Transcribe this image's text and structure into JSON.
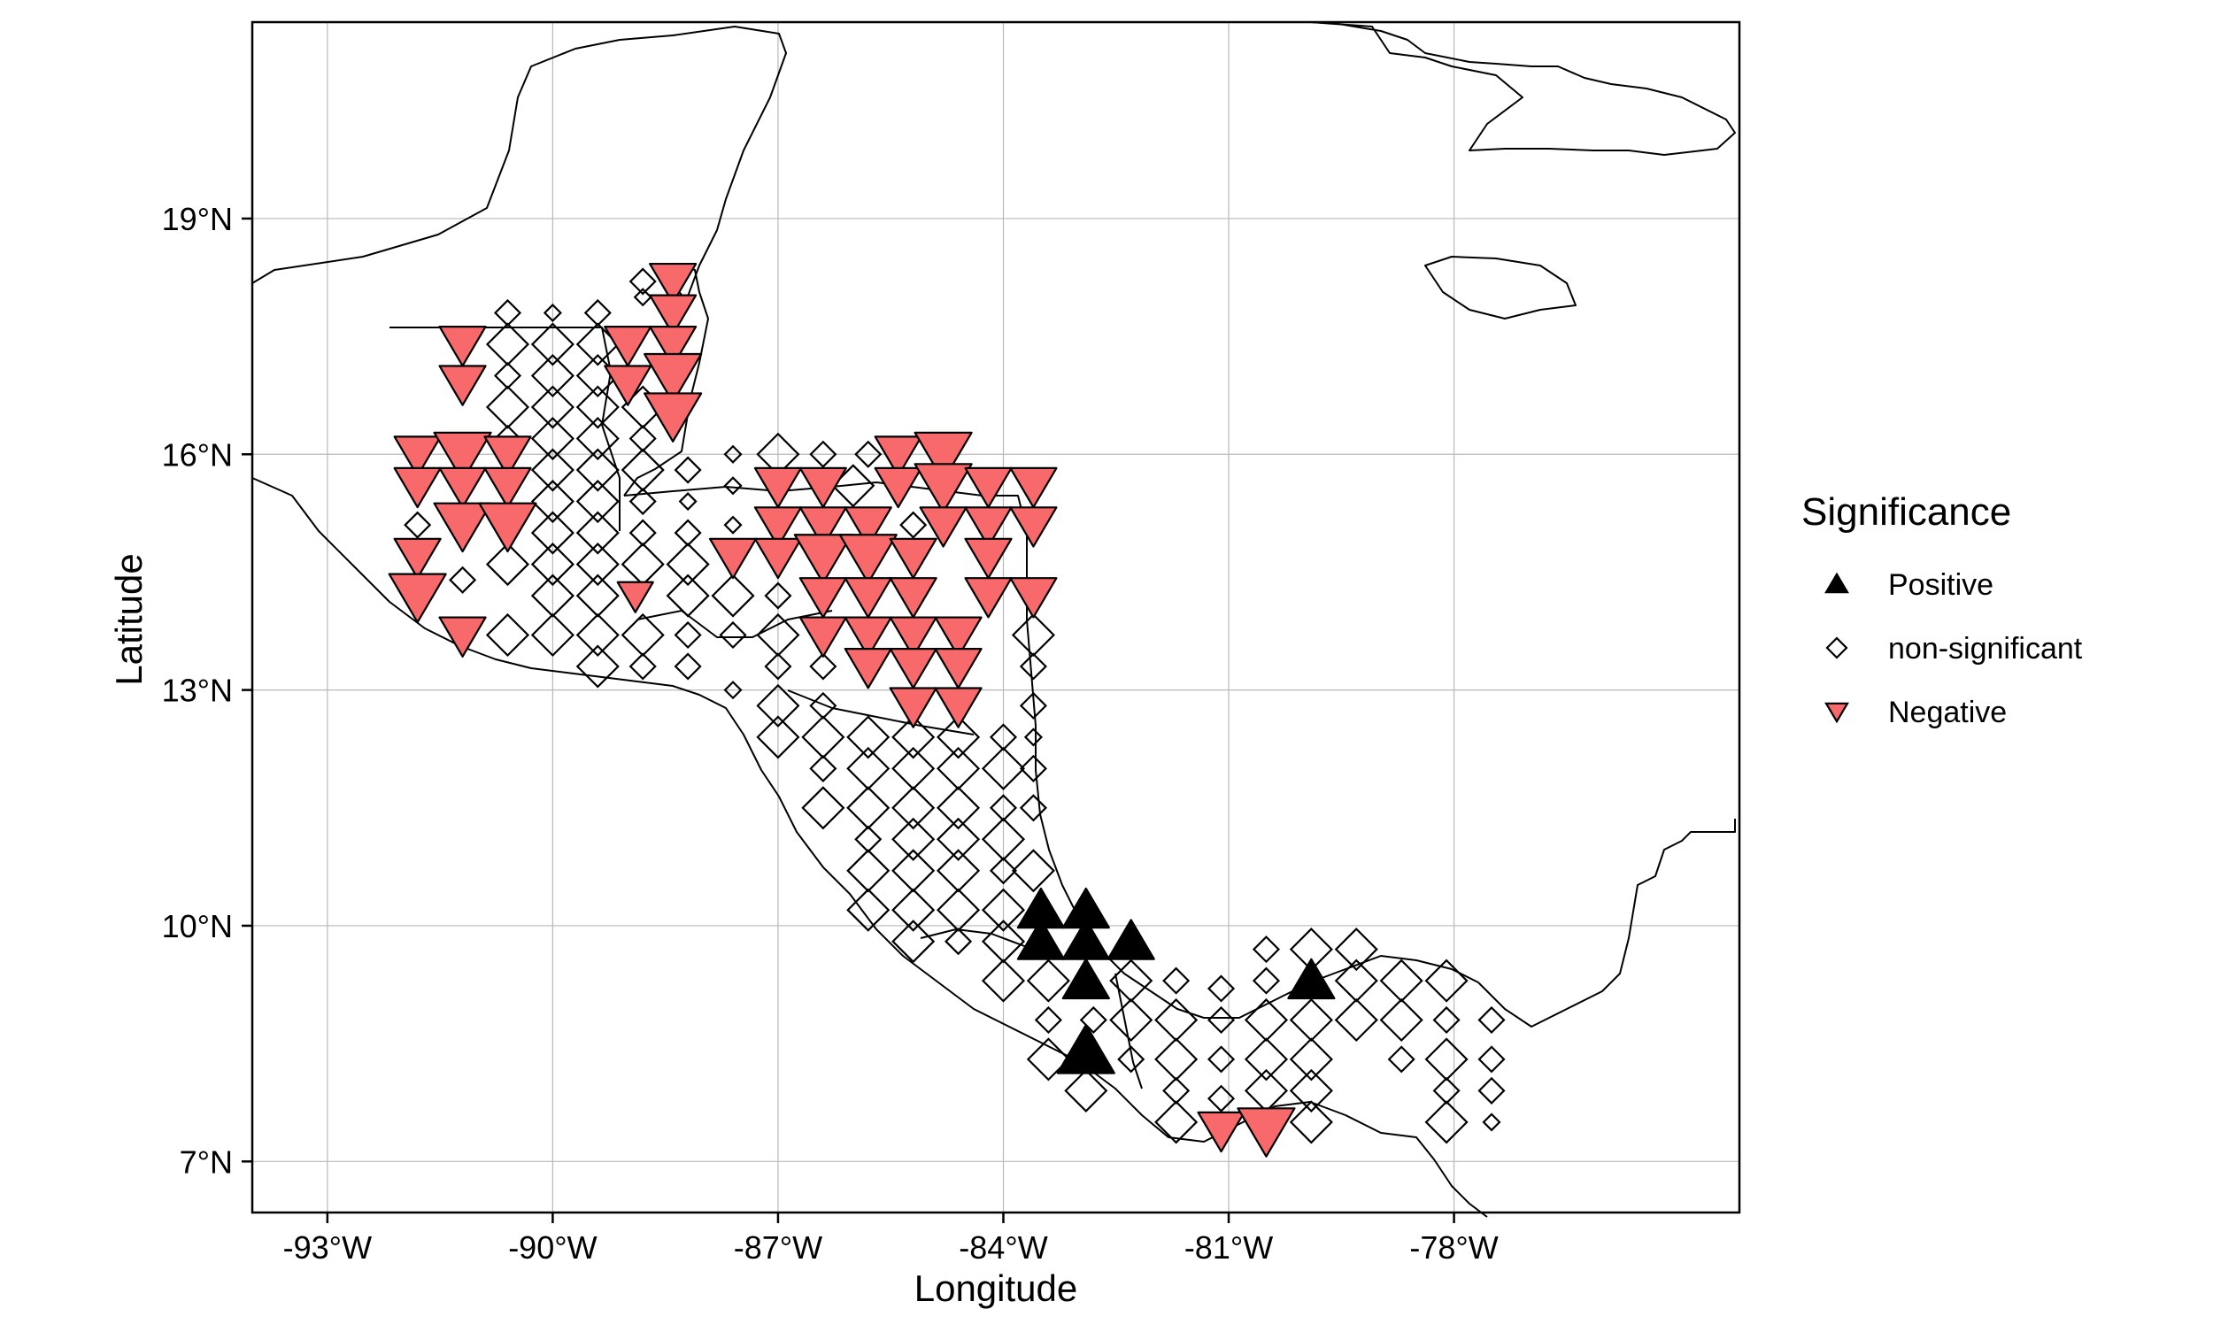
{
  "chart_data": {
    "type": "scatter",
    "subtype": "map",
    "xlabel": "Longitude",
    "ylabel": "Latitude",
    "xlim": [
      -94.0,
      -74.2
    ],
    "ylim": [
      6.35,
      21.5
    ],
    "x_ticks": [
      {
        "value": -93,
        "label": "-93°W"
      },
      {
        "value": -90,
        "label": "-90°W"
      },
      {
        "value": -87,
        "label": "-87°W"
      },
      {
        "value": -84,
        "label": "-84°W"
      },
      {
        "value": -81,
        "label": "-81°W"
      },
      {
        "value": -78,
        "label": "-78°W"
      }
    ],
    "y_ticks": [
      {
        "value": 7,
        "label": "7°N"
      },
      {
        "value": 10,
        "label": "10°N"
      },
      {
        "value": 13,
        "label": "13°N"
      },
      {
        "value": 16,
        "label": "16°N"
      },
      {
        "value": 19,
        "label": "19°N"
      }
    ],
    "grid": true,
    "legend": {
      "title": "Significance",
      "position": "right",
      "entries": [
        {
          "key": "positive",
          "label": "Positive",
          "shape": "triangle-up",
          "fill": "#000000"
        },
        {
          "key": "nonsig",
          "label": "non-significant",
          "shape": "diamond",
          "fill": "#ffffff"
        },
        {
          "key": "negative",
          "label": "Negative",
          "shape": "triangle-down",
          "fill": "#f8696b"
        }
      ]
    },
    "colors": {
      "negative": "#f8696b",
      "positive": "#000000",
      "nonsig": "#ffffff",
      "stroke": "#000000"
    },
    "points": {
      "negative": [
        [
          -88.4,
          18.2,
          2
        ],
        [
          -88.4,
          17.8,
          2
        ],
        [
          -88.4,
          17.4,
          2
        ],
        [
          -88.4,
          17.0,
          3
        ],
        [
          -88.4,
          16.5,
          3
        ],
        [
          -89.0,
          17.4,
          2
        ],
        [
          -89.0,
          16.9,
          2
        ],
        [
          -91.2,
          17.4,
          2
        ],
        [
          -91.2,
          16.9,
          2
        ],
        [
          -91.8,
          16.0,
          2
        ],
        [
          -91.2,
          16.0,
          3
        ],
        [
          -90.6,
          16.0,
          2
        ],
        [
          -91.8,
          15.6,
          2
        ],
        [
          -91.2,
          15.6,
          2
        ],
        [
          -90.6,
          15.6,
          2
        ],
        [
          -91.2,
          15.1,
          3
        ],
        [
          -90.6,
          15.1,
          3
        ],
        [
          -91.8,
          14.7,
          2
        ],
        [
          -91.8,
          14.2,
          3
        ],
        [
          -91.2,
          13.7,
          2
        ],
        [
          -88.9,
          14.2,
          1
        ],
        [
          -85.4,
          16.0,
          2
        ],
        [
          -84.8,
          16.0,
          3
        ],
        [
          -87.0,
          15.6,
          2
        ],
        [
          -86.4,
          15.6,
          2
        ],
        [
          -85.4,
          15.6,
          2
        ],
        [
          -84.8,
          15.6,
          3
        ],
        [
          -84.2,
          15.6,
          2
        ],
        [
          -83.6,
          15.6,
          2
        ],
        [
          -87.0,
          15.1,
          2
        ],
        [
          -86.4,
          15.1,
          2
        ],
        [
          -85.8,
          15.1,
          2
        ],
        [
          -84.8,
          15.1,
          2
        ],
        [
          -84.2,
          15.1,
          2
        ],
        [
          -83.6,
          15.1,
          2
        ],
        [
          -87.6,
          14.7,
          2
        ],
        [
          -87.0,
          14.7,
          2
        ],
        [
          -86.4,
          14.7,
          3
        ],
        [
          -85.8,
          14.7,
          3
        ],
        [
          -85.2,
          14.7,
          2
        ],
        [
          -84.2,
          14.7,
          2
        ],
        [
          -86.4,
          14.2,
          2
        ],
        [
          -85.8,
          14.2,
          2
        ],
        [
          -85.2,
          14.2,
          2
        ],
        [
          -84.2,
          14.2,
          2
        ],
        [
          -83.6,
          14.2,
          2
        ],
        [
          -86.4,
          13.7,
          2
        ],
        [
          -85.8,
          13.7,
          2
        ],
        [
          -85.2,
          13.7,
          2
        ],
        [
          -84.6,
          13.7,
          2
        ],
        [
          -85.8,
          13.3,
          2
        ],
        [
          -85.2,
          13.3,
          2
        ],
        [
          -84.6,
          13.3,
          2
        ],
        [
          -85.2,
          12.8,
          2
        ],
        [
          -84.6,
          12.8,
          2
        ],
        [
          -81.1,
          7.4,
          2
        ],
        [
          -80.5,
          7.4,
          3
        ]
      ],
      "positive": [
        [
          -83.5,
          10.2,
          2
        ],
        [
          -82.9,
          10.2,
          2
        ],
        [
          -83.5,
          9.8,
          2
        ],
        [
          -82.9,
          9.8,
          2
        ],
        [
          -82.3,
          9.8,
          2
        ],
        [
          -82.9,
          9.3,
          2
        ],
        [
          -82.9,
          8.4,
          3
        ],
        [
          -79.9,
          9.3,
          2
        ]
      ],
      "nonsig": [
        [
          -88.8,
          18.2,
          1
        ],
        [
          -88.8,
          18.0,
          0
        ],
        [
          -90.6,
          17.8,
          1
        ],
        [
          -90.0,
          17.8,
          0
        ],
        [
          -89.4,
          17.8,
          1
        ],
        [
          -90.6,
          17.4,
          2
        ],
        [
          -90.0,
          17.4,
          2
        ],
        [
          -89.4,
          17.4,
          2
        ],
        [
          -90.6,
          17.0,
          1
        ],
        [
          -90.0,
          17.0,
          2
        ],
        [
          -89.4,
          17.0,
          2
        ],
        [
          -90.6,
          16.6,
          2
        ],
        [
          -90.0,
          16.6,
          2
        ],
        [
          -89.4,
          16.6,
          2
        ],
        [
          -88.8,
          16.6,
          2
        ],
        [
          -90.6,
          16.2,
          1
        ],
        [
          -90.0,
          16.2,
          2
        ],
        [
          -89.4,
          16.2,
          2
        ],
        [
          -88.8,
          16.2,
          1
        ],
        [
          -90.0,
          15.8,
          2
        ],
        [
          -89.4,
          15.8,
          2
        ],
        [
          -88.8,
          15.8,
          2
        ],
        [
          -88.2,
          15.8,
          1
        ],
        [
          -90.0,
          15.4,
          2
        ],
        [
          -89.4,
          15.4,
          2
        ],
        [
          -88.8,
          15.4,
          1
        ],
        [
          -88.2,
          15.4,
          0
        ],
        [
          -90.0,
          15.0,
          2
        ],
        [
          -89.4,
          15.0,
          2
        ],
        [
          -88.8,
          15.0,
          1
        ],
        [
          -88.2,
          15.0,
          1
        ],
        [
          -90.6,
          14.6,
          2
        ],
        [
          -90.0,
          14.6,
          2
        ],
        [
          -89.4,
          14.6,
          2
        ],
        [
          -88.8,
          14.6,
          2
        ],
        [
          -88.2,
          14.6,
          2
        ],
        [
          -90.0,
          14.2,
          2
        ],
        [
          -89.4,
          14.2,
          2
        ],
        [
          -88.2,
          14.2,
          2
        ],
        [
          -90.6,
          13.7,
          2
        ],
        [
          -90.0,
          13.7,
          2
        ],
        [
          -89.4,
          13.7,
          2
        ],
        [
          -88.8,
          13.7,
          2
        ],
        [
          -88.2,
          13.7,
          1
        ],
        [
          -89.4,
          13.3,
          2
        ],
        [
          -88.8,
          13.3,
          1
        ],
        [
          -88.2,
          13.3,
          1
        ],
        [
          -91.2,
          14.4,
          1
        ],
        [
          -91.8,
          15.1,
          1
        ],
        [
          -87.6,
          16.0,
          0
        ],
        [
          -87.0,
          16.0,
          2
        ],
        [
          -86.4,
          16.0,
          1
        ],
        [
          -85.8,
          16.0,
          1
        ],
        [
          -87.6,
          15.6,
          0
        ],
        [
          -87.6,
          15.1,
          0
        ],
        [
          -85.2,
          15.1,
          1
        ],
        [
          -86.0,
          15.6,
          2
        ],
        [
          -87.6,
          14.2,
          2
        ],
        [
          -87.0,
          14.2,
          1
        ],
        [
          -87.6,
          13.7,
          1
        ],
        [
          -87.0,
          13.7,
          2
        ],
        [
          -87.0,
          13.3,
          1
        ],
        [
          -86.4,
          13.3,
          1
        ],
        [
          -87.6,
          13.0,
          0
        ],
        [
          -87.0,
          12.8,
          2
        ],
        [
          -86.4,
          12.8,
          1
        ],
        [
          -87.0,
          12.4,
          2
        ],
        [
          -86.4,
          12.4,
          2
        ],
        [
          -85.8,
          12.4,
          2
        ],
        [
          -85.2,
          12.4,
          2
        ],
        [
          -84.6,
          12.4,
          2
        ],
        [
          -84.0,
          12.4,
          1
        ],
        [
          -83.6,
          12.4,
          0
        ],
        [
          -86.4,
          12.0,
          1
        ],
        [
          -85.8,
          12.0,
          2
        ],
        [
          -85.2,
          12.0,
          2
        ],
        [
          -84.6,
          12.0,
          2
        ],
        [
          -84.0,
          12.0,
          2
        ],
        [
          -83.6,
          12.0,
          1
        ],
        [
          -86.4,
          11.5,
          2
        ],
        [
          -85.8,
          11.5,
          2
        ],
        [
          -85.2,
          11.5,
          2
        ],
        [
          -84.6,
          11.5,
          2
        ],
        [
          -84.0,
          11.5,
          1
        ],
        [
          -83.6,
          11.5,
          1
        ],
        [
          -85.8,
          11.1,
          1
        ],
        [
          -85.2,
          11.1,
          2
        ],
        [
          -84.6,
          11.1,
          2
        ],
        [
          -84.0,
          11.1,
          2
        ],
        [
          -85.8,
          10.7,
          2
        ],
        [
          -85.2,
          10.7,
          2
        ],
        [
          -84.6,
          10.7,
          2
        ],
        [
          -84.0,
          10.7,
          1
        ],
        [
          -83.6,
          10.7,
          2
        ],
        [
          -85.8,
          10.2,
          2
        ],
        [
          -85.2,
          10.2,
          2
        ],
        [
          -84.6,
          10.2,
          2
        ],
        [
          -84.0,
          10.2,
          2
        ],
        [
          -85.2,
          9.8,
          2
        ],
        [
          -84.6,
          9.8,
          1
        ],
        [
          -84.0,
          9.8,
          2
        ],
        [
          -83.6,
          13.7,
          2
        ],
        [
          -83.6,
          13.3,
          1
        ],
        [
          -83.6,
          12.8,
          1
        ],
        [
          -84.0,
          9.3,
          2
        ],
        [
          -83.4,
          9.3,
          2
        ],
        [
          -82.3,
          9.3,
          2
        ],
        [
          -81.7,
          9.3,
          1
        ],
        [
          -83.4,
          8.8,
          1
        ],
        [
          -82.8,
          8.8,
          1
        ],
        [
          -82.3,
          8.8,
          2
        ],
        [
          -81.7,
          8.8,
          2
        ],
        [
          -81.1,
          8.8,
          1
        ],
        [
          -83.4,
          8.3,
          2
        ],
        [
          -82.3,
          8.3,
          1
        ],
        [
          -81.7,
          8.3,
          2
        ],
        [
          -81.1,
          8.3,
          1
        ],
        [
          -80.5,
          8.3,
          2
        ],
        [
          -79.9,
          8.3,
          2
        ],
        [
          -82.9,
          7.9,
          2
        ],
        [
          -81.7,
          7.9,
          1
        ],
        [
          -80.5,
          7.9,
          2
        ],
        [
          -79.9,
          7.9,
          2
        ],
        [
          -81.7,
          7.5,
          2
        ],
        [
          -79.9,
          7.5,
          2
        ],
        [
          -81.1,
          7.8,
          1
        ],
        [
          -80.5,
          9.3,
          1
        ],
        [
          -80.5,
          8.8,
          2
        ],
        [
          -79.9,
          8.8,
          2
        ],
        [
          -79.3,
          8.8,
          2
        ],
        [
          -79.9,
          9.7,
          2
        ],
        [
          -79.3,
          9.7,
          2
        ],
        [
          -79.3,
          9.3,
          2
        ],
        [
          -78.7,
          9.3,
          2
        ],
        [
          -78.1,
          9.3,
          2
        ],
        [
          -78.7,
          8.8,
          2
        ],
        [
          -78.1,
          8.8,
          1
        ],
        [
          -78.7,
          8.3,
          1
        ],
        [
          -78.1,
          8.3,
          2
        ],
        [
          -78.1,
          7.9,
          1
        ],
        [
          -78.1,
          7.5,
          2
        ],
        [
          -77.5,
          8.8,
          1
        ],
        [
          -77.5,
          8.3,
          1
        ],
        [
          -77.5,
          7.9,
          1
        ],
        [
          -77.5,
          7.5,
          0
        ],
        [
          -81.1,
          9.2,
          1
        ],
        [
          -80.5,
          9.7,
          1
        ]
      ]
    }
  }
}
